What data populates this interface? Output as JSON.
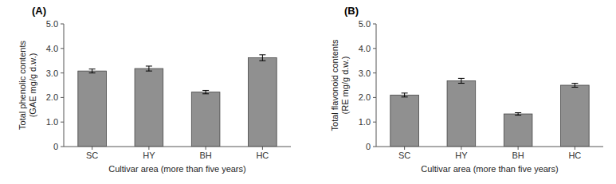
{
  "chart_data": [
    {
      "type": "bar",
      "title": "(A)",
      "categories": [
        "SC",
        "HY",
        "BH",
        "HC"
      ],
      "values": [
        3.08,
        3.18,
        2.22,
        3.62
      ],
      "errors": [
        0.08,
        0.1,
        0.07,
        0.12
      ],
      "ylabel": "Total phenolic contents\n(GAE mg/g d.w.)",
      "xlabel": "Cultivar area (more than five years)",
      "ylim": [
        0,
        5
      ],
      "yticks": [
        0,
        {
          "value": 1,
          "label": "1.0"
        },
        {
          "value": 2,
          "label": "2.0"
        },
        {
          "value": 3,
          "label": "3.0"
        },
        {
          "value": 4,
          "label": "4.0"
        },
        {
          "value": 5,
          "label": "5.0"
        }
      ],
      "color": "#909090"
    },
    {
      "type": "bar",
      "title": "(B)",
      "categories": [
        "SC",
        "HY",
        "BH",
        "HC"
      ],
      "values": [
        2.1,
        2.68,
        1.33,
        2.5
      ],
      "errors": [
        0.08,
        0.1,
        0.05,
        0.08
      ],
      "ylabel": "Total flavonoid contents\n(RE mg/g d.w.)",
      "xlabel": "Cultivar area (more than five years)",
      "ylim": [
        0,
        5
      ],
      "yticks": [
        0,
        {
          "value": 1,
          "label": "1.0"
        },
        {
          "value": 2,
          "label": "2.0"
        },
        {
          "value": 3,
          "label": "3.0"
        },
        {
          "value": 4,
          "label": "4.0"
        },
        {
          "value": 5,
          "label": "5.0"
        }
      ],
      "color": "#909090"
    }
  ]
}
